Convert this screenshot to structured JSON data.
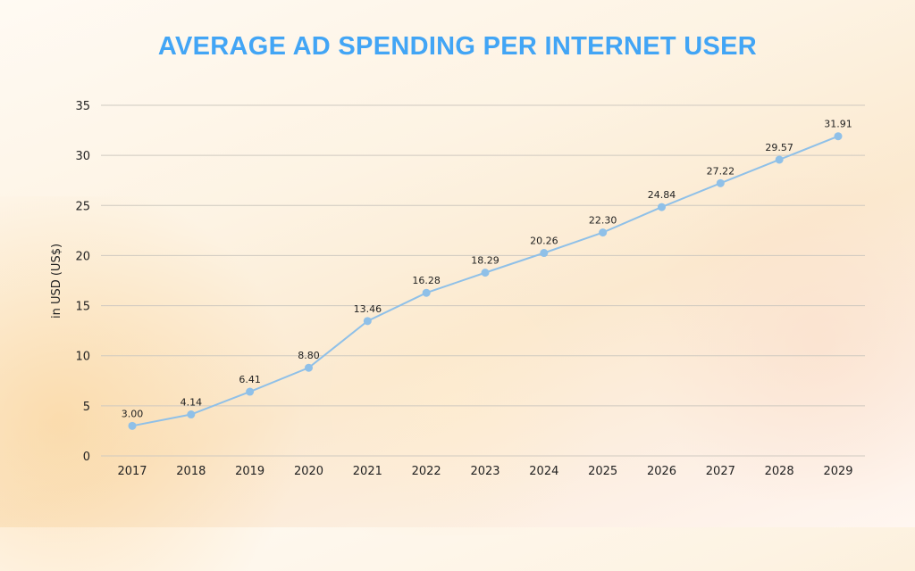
{
  "colors": {
    "title": "#42a5f5",
    "line": "#8fc0e8",
    "marker": "#8fc0e8",
    "grid": "#cfc9c0",
    "text": "#222222"
  },
  "chart_data": {
    "type": "line",
    "title": "AVERAGE AD SPENDING PER INTERNET USER",
    "xlabel": "",
    "ylabel": "in USD (US$)",
    "ylim": [
      0,
      35
    ],
    "yticks": [
      0,
      5,
      10,
      15,
      20,
      25,
      30,
      35
    ],
    "grid": true,
    "legend": "none",
    "categories": [
      "2017",
      "2018",
      "2019",
      "2020",
      "2021",
      "2022",
      "2023",
      "2024",
      "2025",
      "2026",
      "2027",
      "2028",
      "2029"
    ],
    "series": [
      {
        "name": "Average ad spending per internet user",
        "values": [
          3.0,
          4.14,
          6.41,
          8.8,
          13.46,
          16.28,
          18.29,
          20.26,
          22.3,
          24.84,
          27.22,
          29.57,
          31.91
        ],
        "labels": [
          "3.00",
          "4.14",
          "6.41",
          "8.80",
          "13.46",
          "16.28",
          "18.29",
          "20.26",
          "22.30",
          "24.84",
          "27.22",
          "29.57",
          "31.91"
        ]
      }
    ]
  }
}
